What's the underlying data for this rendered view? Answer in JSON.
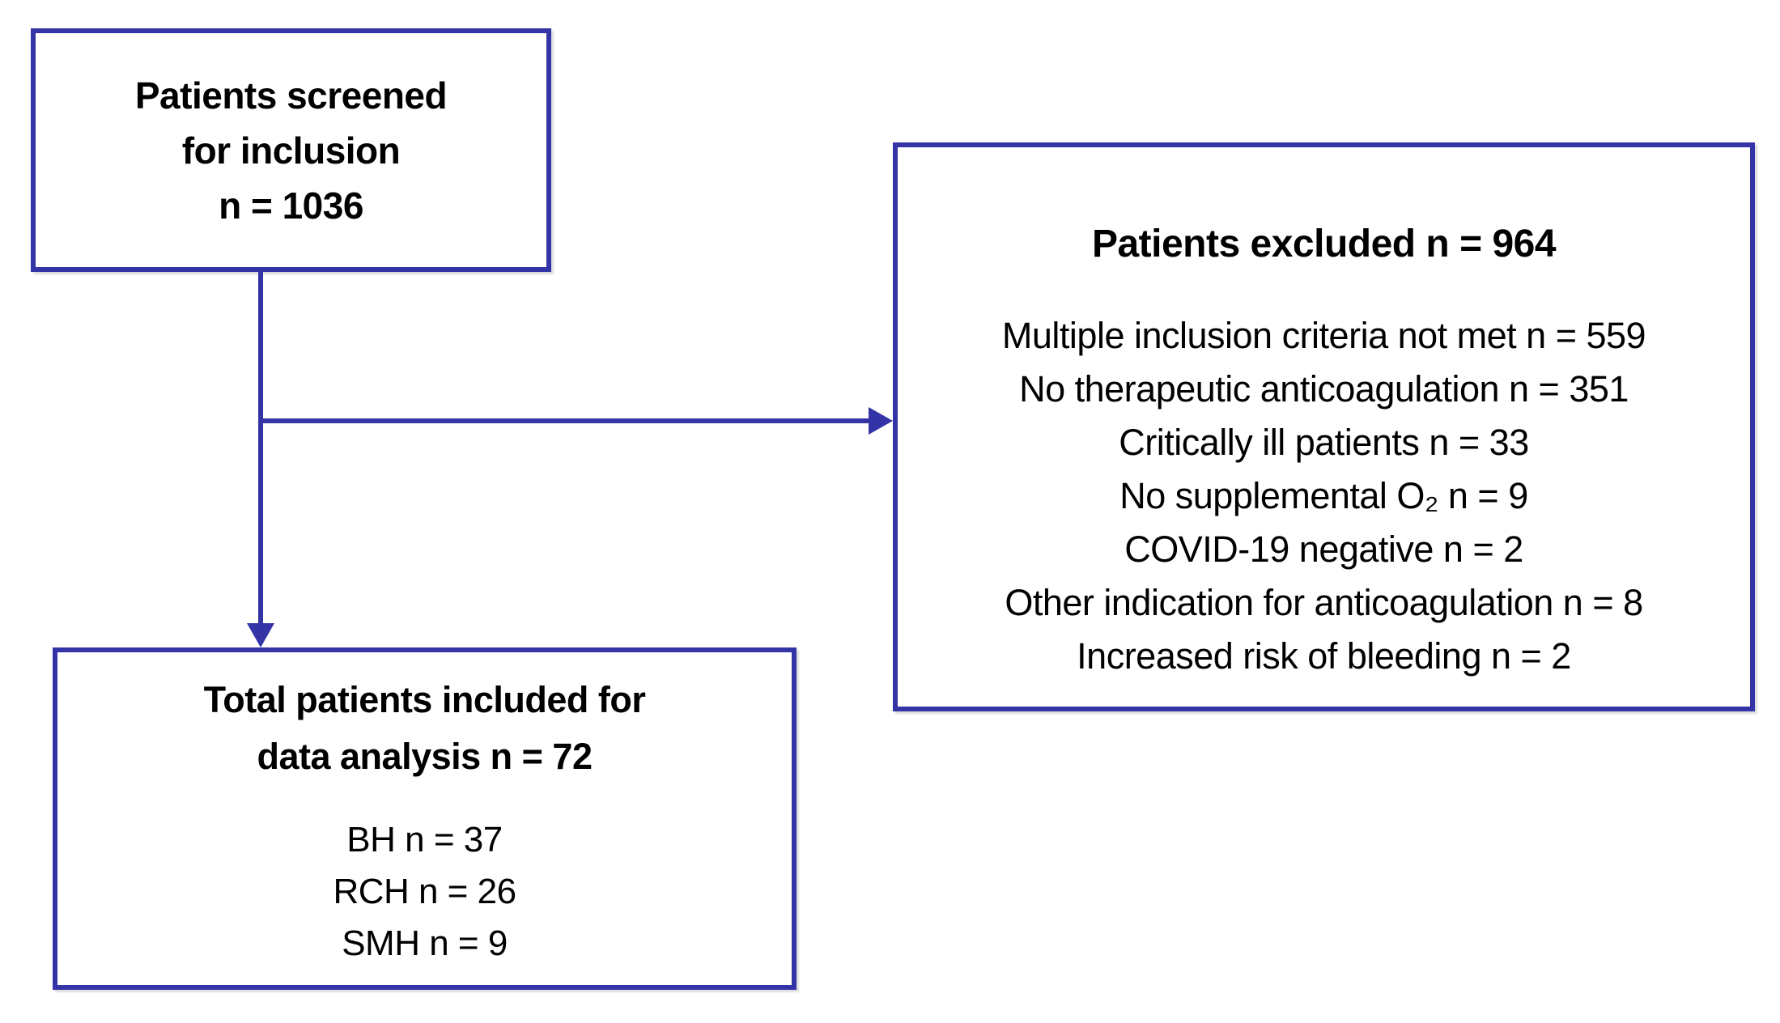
{
  "diagram": {
    "type": "patient-flow-diagram",
    "colors": {
      "box_border": "#3434a6",
      "arrow": "#3434a6",
      "text": "#000000",
      "background": "#ffffff"
    },
    "boxes": {
      "screened": {
        "lines": [
          "Patients screened",
          "for inclusion",
          "n = 1036"
        ],
        "n": 1036
      },
      "excluded": {
        "title": "Patients excluded n = 964",
        "n": 964,
        "reasons": [
          "Multiple inclusion criteria not met n = 559",
          "No therapeutic anticoagulation n = 351",
          "Critically ill patients n = 33",
          "No supplemental O₂ n = 9",
          "COVID-19 negative n = 2",
          "Other indication for anticoagulation n = 8",
          "Increased risk of bleeding n = 2"
        ]
      },
      "included": {
        "title_lines": [
          "Total patients included for",
          "data analysis n = 72"
        ],
        "n": 72,
        "sites": [
          "BH n = 37",
          "RCH n = 26",
          "SMH n = 9"
        ]
      }
    }
  }
}
